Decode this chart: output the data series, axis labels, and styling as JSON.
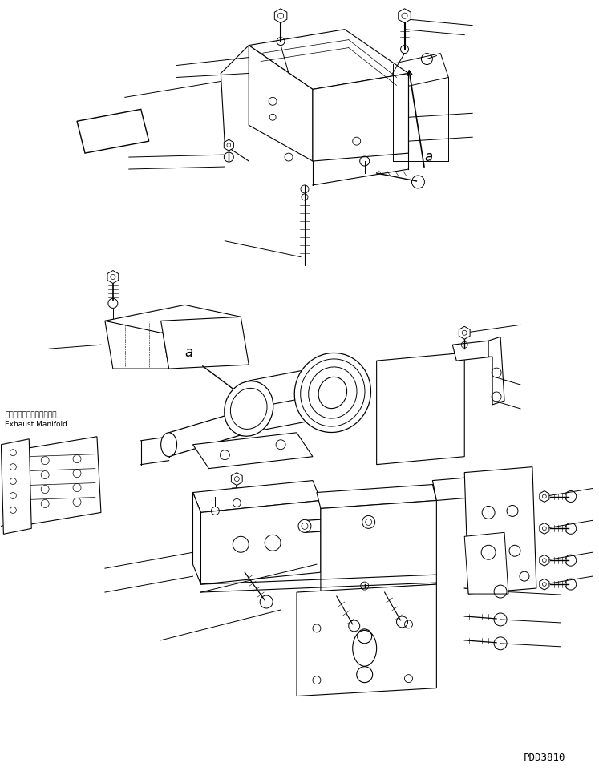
{
  "bg_color": "#ffffff",
  "line_color": "#000000",
  "fig_width": 7.47,
  "fig_height": 9.72,
  "dpi": 100,
  "watermark": "PDD3810",
  "exhaust_manifold_jp": "エキゾーストマニホールド",
  "exhaust_manifold_en": "Exhaust Manifold"
}
